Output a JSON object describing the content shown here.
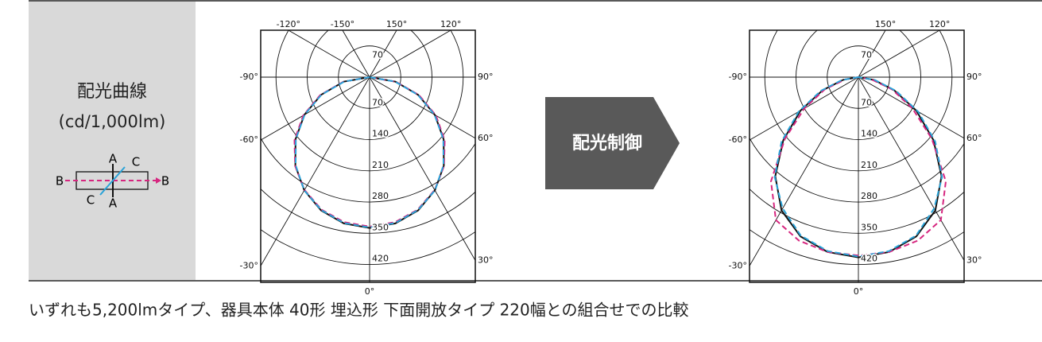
{
  "panel": {
    "title": "配光曲線",
    "unit": "(cd/1,000lm)"
  },
  "control_label": "配光制御",
  "caption": "いずれも5,200lmタイプ、器具本体 40形 埋込形 下面開放タイプ 220幅との組合せでの比較",
  "chart_data": [
    {
      "type": "polar",
      "x": [
        -90,
        -80,
        -70,
        -60,
        -50,
        -40,
        -30,
        -20,
        -10,
        0,
        10,
        20,
        30,
        40,
        50,
        60,
        70,
        80,
        90
      ],
      "rlim": [
        0,
        460
      ],
      "rticks": [
        70,
        140,
        210,
        280,
        350,
        420
      ],
      "angle_ticks": [
        {
          "value": -120,
          "label": "-120°"
        },
        {
          "value": -150,
          "label": "-150°"
        },
        {
          "value": 150,
          "label": "150°"
        },
        {
          "value": 120,
          "label": "120°"
        },
        {
          "value": -90,
          "label": "-90°"
        },
        {
          "value": 90,
          "label": "90°"
        },
        {
          "value": -60,
          "label": "-60°"
        },
        {
          "value": 60,
          "label": "60°"
        },
        {
          "value": -30,
          "label": "-30°"
        },
        {
          "value": 0,
          "label": "0°"
        },
        {
          "value": 30,
          "label": "30°"
        }
      ],
      "series": [
        {
          "name": "A",
          "color": "#111111",
          "dash": false,
          "values": [
            0,
            59,
            116,
            169,
            217,
            259,
            293,
            318,
            333,
            338,
            333,
            318,
            293,
            259,
            217,
            169,
            116,
            59,
            0
          ]
        },
        {
          "name": "B",
          "color": "#d6267f",
          "dash": true,
          "values": [
            0,
            60,
            118,
            172,
            220,
            260,
            292,
            316,
            330,
            335,
            330,
            316,
            292,
            260,
            220,
            172,
            118,
            60,
            0
          ]
        },
        {
          "name": "C",
          "color": "#2aa3d8",
          "dash": true,
          "values": [
            0,
            58,
            115,
            168,
            216,
            258,
            293,
            317,
            332,
            337,
            332,
            317,
            293,
            258,
            216,
            168,
            115,
            58,
            0
          ]
        }
      ]
    },
    {
      "type": "polar",
      "x": [
        -90,
        -80,
        -70,
        -60,
        -50,
        -40,
        -30,
        -20,
        -10,
        0,
        10,
        20,
        30,
        40,
        50,
        60,
        70,
        80,
        90
      ],
      "rlim": [
        0,
        460
      ],
      "rticks": [
        70,
        140,
        210,
        280,
        350,
        420
      ],
      "angle_ticks": [
        {
          "value": 150,
          "label": "150°"
        },
        {
          "value": 120,
          "label": "120°"
        },
        {
          "value": -90,
          "label": "-90°"
        },
        {
          "value": 90,
          "label": "90°"
        },
        {
          "value": -60,
          "label": "-60°"
        },
        {
          "value": 60,
          "label": "60°"
        },
        {
          "value": -30,
          "label": "-30°"
        },
        {
          "value": 0,
          "label": "0°"
        },
        {
          "value": 30,
          "label": "30°"
        }
      ],
      "series": [
        {
          "name": "A",
          "color": "#111111",
          "dash": false,
          "values": [
            0,
            35,
            85,
            150,
            220,
            290,
            345,
            380,
            398,
            404,
            398,
            380,
            345,
            290,
            220,
            150,
            85,
            35,
            0
          ]
        },
        {
          "name": "B",
          "color": "#d6267f",
          "dash": true,
          "values": [
            0,
            30,
            80,
            140,
            215,
            305,
            370,
            390,
            398,
            400,
            398,
            390,
            370,
            305,
            215,
            140,
            80,
            30,
            0
          ]
        },
        {
          "name": "C",
          "color": "#2aa3d8",
          "dash": true,
          "values": [
            0,
            38,
            90,
            155,
            225,
            292,
            340,
            378,
            396,
            402,
            396,
            378,
            340,
            292,
            225,
            155,
            90,
            38,
            0
          ]
        }
      ]
    }
  ]
}
